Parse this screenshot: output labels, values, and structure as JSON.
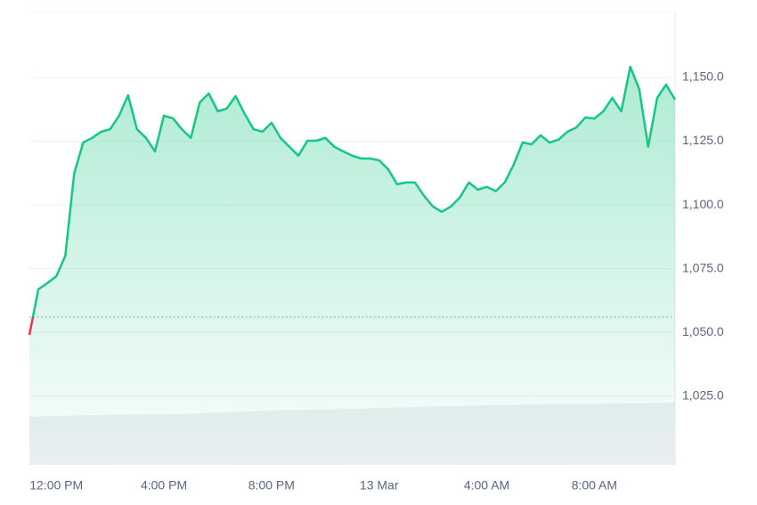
{
  "chart_data": {
    "type": "line",
    "categories": [
      null,
      null,
      null,
      "12:00 PM",
      null,
      null,
      null,
      null,
      null,
      null,
      null,
      null,
      null,
      null,
      null,
      "4:00 PM",
      null,
      null,
      null,
      null,
      null,
      null,
      null,
      null,
      null,
      null,
      null,
      "8:00 PM",
      null,
      null,
      null,
      null,
      null,
      null,
      null,
      null,
      null,
      null,
      null,
      "13 Mar",
      null,
      null,
      null,
      null,
      null,
      null,
      null,
      null,
      null,
      null,
      null,
      "4:00 AM",
      null,
      null,
      null,
      null,
      null,
      null,
      null,
      null,
      null,
      null,
      null,
      "8:00 AM",
      null,
      null,
      null,
      null,
      null,
      null,
      null,
      null,
      null
    ],
    "series": [
      {
        "color": "#16c784",
        "values": [
          1049,
          1066.9,
          1069.3,
          1072,
          1080,
          1112.3,
          1124.5,
          1126.3,
          1128.7,
          1129.7,
          1135,
          1143,
          1129.7,
          1126.3,
          1121,
          1135,
          1134,
          1129.7,
          1126.3,
          1140.2,
          1143.7,
          1136.7,
          1137.8,
          1142.7,
          1135.7,
          1129.7,
          1128.7,
          1132.2,
          1126.3,
          1122.8,
          1119.3,
          1125.2,
          1125.2,
          1126.3,
          1122.8,
          1121,
          1119.3,
          1118.2,
          1118.2,
          1117.5,
          1114,
          1108.1,
          1108.8,
          1108.8,
          1103.6,
          1099.4,
          1097.3,
          1099.4,
          1102.9,
          1108.8,
          1106,
          1107.1,
          1105.4,
          1108.8,
          1115.8,
          1124.5,
          1123.8,
          1127.3,
          1124.5,
          1125.6,
          1128.7,
          1130.4,
          1134.3,
          1133.9,
          1136.7,
          1142,
          1136.7,
          1154.2,
          1145.5,
          1122.8,
          1142,
          1147.2,
          1141.3
        ]
      }
    ],
    "reference": 1056,
    "below_color": "#ea3943",
    "ylim": [
      998,
      1175.5
    ],
    "yticks": [
      {
        "value": 1025,
        "label": "1,025.0"
      },
      {
        "value": 1050,
        "label": "1,050.0"
      },
      {
        "value": 1075,
        "label": "1,075.0"
      },
      {
        "value": 1100,
        "label": "1,100.0"
      },
      {
        "value": 1125,
        "label": "1,125.0"
      },
      {
        "value": 1150,
        "label": "1,150.0"
      }
    ],
    "grid": true
  }
}
